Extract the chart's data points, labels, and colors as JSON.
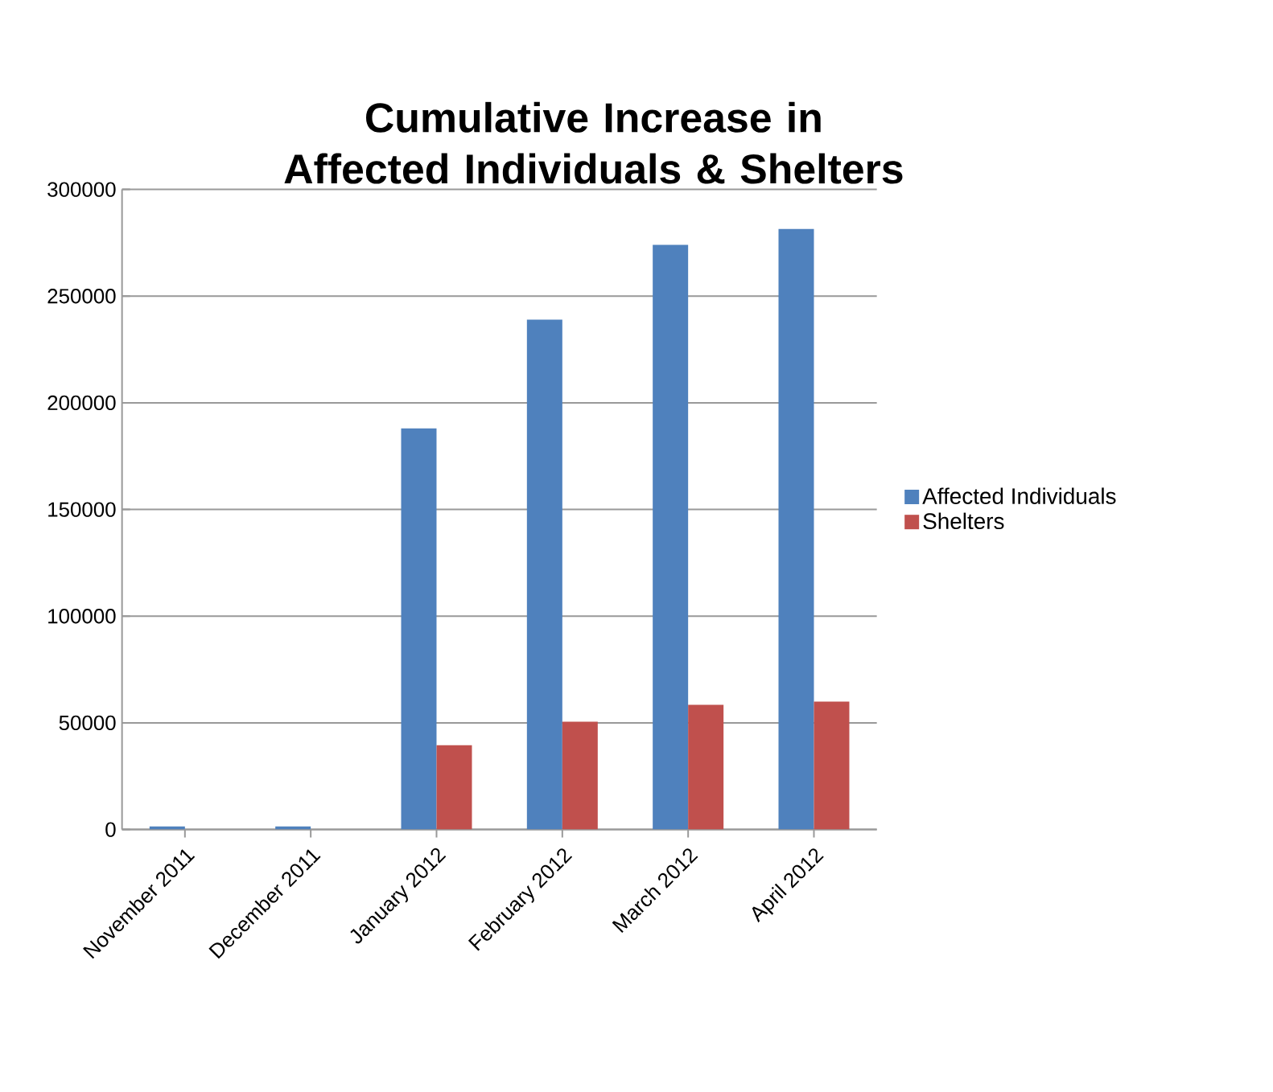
{
  "chart_data": {
    "type": "bar",
    "title": "Cumulative Increase in Affected Individuals & Shelters",
    "categories": [
      "November 2011",
      "December 2011",
      "January 2012",
      "February 2012",
      "March 2012",
      "April 2012"
    ],
    "series": [
      {
        "name": "Affected Individuals",
        "color": "#4f81bd",
        "values": [
          1500,
          1500,
          188000,
          239000,
          274000,
          281500
        ]
      },
      {
        "name": "Shelters",
        "color": "#c0504d",
        "values": [
          0,
          0,
          39500,
          50500,
          58500,
          60000
        ]
      }
    ],
    "ylim": [
      0,
      300000
    ],
    "yticks": [
      0,
      50000,
      100000,
      150000,
      200000,
      250000,
      300000
    ],
    "grid": "y",
    "legend": "right"
  }
}
